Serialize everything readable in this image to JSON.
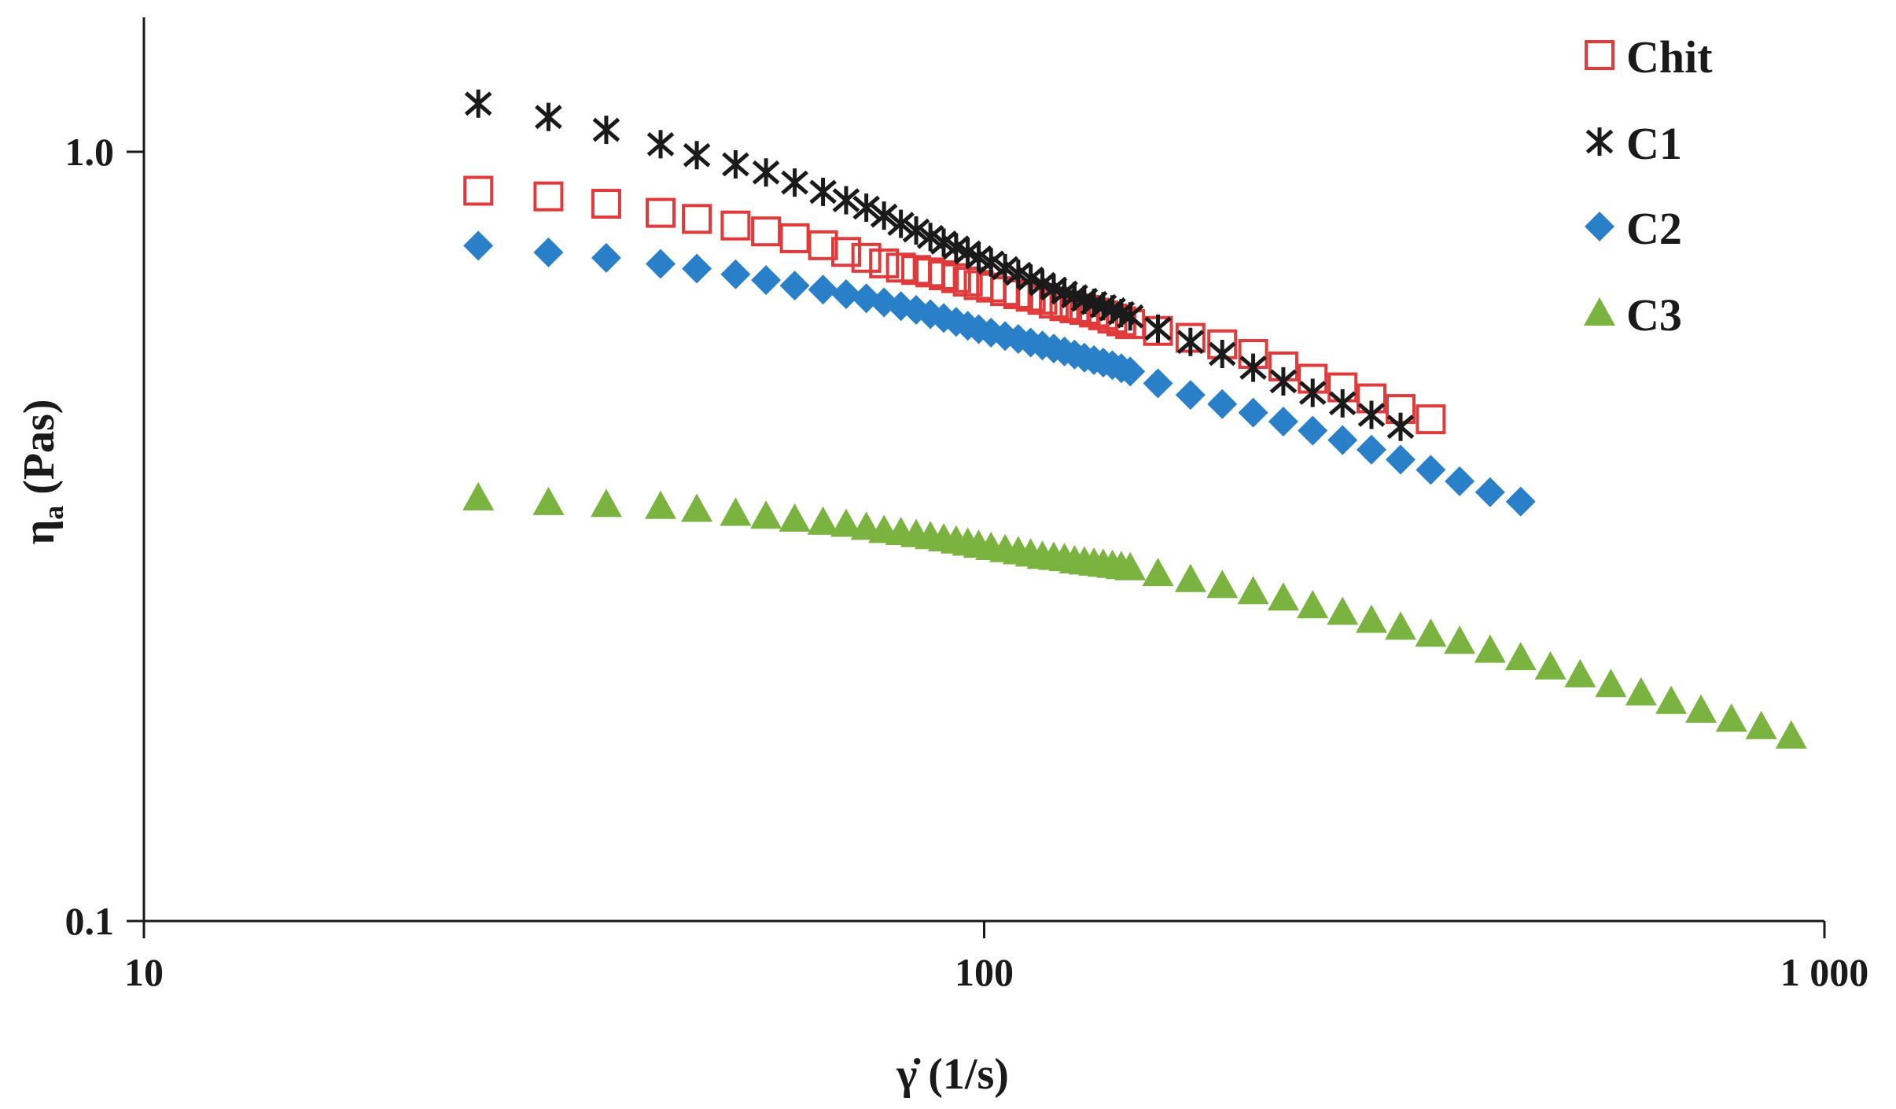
{
  "chart_data": {
    "type": "scatter",
    "title": "",
    "x_scale": "log",
    "y_scale": "log",
    "xlim": [
      10,
      1000
    ],
    "ylim": [
      0.1,
      1.2
    ],
    "x_ticks": [
      10,
      100,
      1000
    ],
    "x_tick_labels": [
      "10",
      "100",
      "1 000"
    ],
    "y_ticks": [
      0.1,
      1.0
    ],
    "y_tick_labels": [
      "0.1",
      "1.0"
    ],
    "xlabel": "γ̇ (1/s)",
    "ylabel_main": "η",
    "ylabel_sub": "a",
    "ylabel_unit": " (Pas)",
    "grid": false,
    "legend_position": "top-right",
    "legend": [
      "Chit",
      "C1",
      "C2",
      "C3"
    ],
    "series": [
      {
        "name": "Chit",
        "marker": "open-square",
        "color": "#e03a3a",
        "x": [
          25.0,
          30.3,
          35.5,
          41.2,
          45.5,
          50.6,
          55.0,
          59.5,
          64.3,
          68.5,
          72.4,
          76.0,
          79.6,
          83.0,
          86.3,
          89.5,
          92.6,
          95.6,
          98.5,
          101.9,
          105.9,
          109.8,
          113.6,
          117.3,
          121.0,
          124.6,
          128.1,
          131.6,
          135.1,
          138.6,
          142.1,
          145.6,
          149.2,
          161.0,
          176.0,
          192.0,
          209.0,
          227.0,
          246.0,
          267.0,
          289.0,
          313.0,
          340.0
        ],
        "y": [
          0.89,
          0.875,
          0.856,
          0.833,
          0.818,
          0.802,
          0.788,
          0.772,
          0.756,
          0.741,
          0.728,
          0.716,
          0.707,
          0.702,
          0.697,
          0.691,
          0.685,
          0.678,
          0.671,
          0.666,
          0.659,
          0.653,
          0.648,
          0.642,
          0.635,
          0.63,
          0.626,
          0.623,
          0.618,
          0.613,
          0.607,
          0.602,
          0.597,
          0.585,
          0.573,
          0.562,
          0.546,
          0.526,
          0.507,
          0.494,
          0.478,
          0.463,
          0.449
        ]
      },
      {
        "name": "C1",
        "marker": "asterisk",
        "color": "#1a1a1a",
        "x": [
          25.0,
          30.3,
          35.5,
          41.2,
          45.5,
          50.6,
          55.0,
          59.5,
          64.3,
          68.5,
          72.4,
          76.0,
          79.6,
          83.0,
          86.3,
          89.5,
          92.6,
          95.6,
          98.5,
          101.9,
          105.9,
          109.8,
          113.6,
          117.3,
          121.0,
          124.6,
          128.1,
          131.6,
          135.1,
          138.6,
          142.1,
          145.6,
          149.2,
          161.0,
          176.0,
          192.0,
          209.0,
          227.0,
          246.0,
          267.0,
          289.0,
          313.0
        ],
        "y": [
          1.155,
          1.11,
          1.068,
          1.023,
          0.99,
          0.963,
          0.94,
          0.912,
          0.887,
          0.865,
          0.846,
          0.826,
          0.806,
          0.79,
          0.775,
          0.762,
          0.751,
          0.74,
          0.729,
          0.718,
          0.706,
          0.694,
          0.684,
          0.673,
          0.664,
          0.656,
          0.649,
          0.642,
          0.636,
          0.63,
          0.624,
          0.617,
          0.611,
          0.589,
          0.566,
          0.546,
          0.524,
          0.503,
          0.486,
          0.471,
          0.455,
          0.439
        ]
      },
      {
        "name": "C2",
        "marker": "diamond",
        "color": "#2a80c8",
        "x": [
          25.0,
          30.3,
          35.5,
          41.2,
          45.5,
          50.6,
          55.0,
          59.5,
          64.3,
          68.5,
          72.4,
          76.0,
          79.6,
          83.0,
          86.3,
          89.5,
          92.6,
          95.6,
          98.5,
          101.9,
          105.9,
          109.8,
          113.6,
          117.3,
          121.0,
          124.6,
          128.1,
          131.6,
          135.1,
          138.6,
          142.1,
          145.6,
          149.2,
          161.0,
          176.0,
          192.0,
          209.0,
          227.0,
          246.0,
          267.0,
          289.0,
          313.0,
          340.0,
          368.0,
          400.0,
          435.0
        ],
        "y": [
          0.755,
          0.74,
          0.728,
          0.715,
          0.705,
          0.693,
          0.681,
          0.67,
          0.662,
          0.653,
          0.645,
          0.637,
          0.63,
          0.623,
          0.615,
          0.608,
          0.601,
          0.594,
          0.588,
          0.582,
          0.576,
          0.571,
          0.565,
          0.56,
          0.555,
          0.55,
          0.545,
          0.54,
          0.536,
          0.532,
          0.528,
          0.523,
          0.518,
          0.5,
          0.483,
          0.47,
          0.458,
          0.446,
          0.434,
          0.422,
          0.41,
          0.398,
          0.386,
          0.373,
          0.361,
          0.351
        ]
      },
      {
        "name": "C3",
        "marker": "triangle",
        "color": "#7ab33f",
        "x": [
          25.0,
          30.3,
          35.5,
          41.2,
          45.5,
          50.6,
          55.0,
          59.5,
          64.3,
          68.5,
          72.4,
          76.0,
          79.6,
          83.0,
          86.3,
          89.5,
          92.6,
          95.6,
          98.5,
          101.9,
          105.9,
          109.8,
          113.6,
          117.3,
          121.0,
          124.6,
          128.1,
          131.6,
          135.1,
          138.6,
          142.1,
          145.6,
          149.2,
          161.0,
          176.0,
          192.0,
          209.0,
          227.0,
          246.0,
          267.0,
          289.0,
          313.0,
          340.0,
          368.0,
          400.0,
          435.0,
          472.0,
          512.0,
          557.0,
          605.0,
          657.0,
          713.0,
          775.0,
          841.0,
          913.0
        ],
        "y": [
          0.355,
          0.35,
          0.348,
          0.346,
          0.343,
          0.339,
          0.336,
          0.333,
          0.33,
          0.328,
          0.325,
          0.322,
          0.32,
          0.318,
          0.316,
          0.314,
          0.312,
          0.31,
          0.308,
          0.306,
          0.304,
          0.302,
          0.3,
          0.298,
          0.297,
          0.296,
          0.294,
          0.293,
          0.292,
          0.291,
          0.29,
          0.289,
          0.288,
          0.283,
          0.278,
          0.273,
          0.268,
          0.263,
          0.257,
          0.252,
          0.246,
          0.241,
          0.236,
          0.231,
          0.225,
          0.22,
          0.214,
          0.209,
          0.203,
          0.198,
          0.193,
          0.188,
          0.183,
          0.179,
          0.174
        ]
      }
    ]
  }
}
